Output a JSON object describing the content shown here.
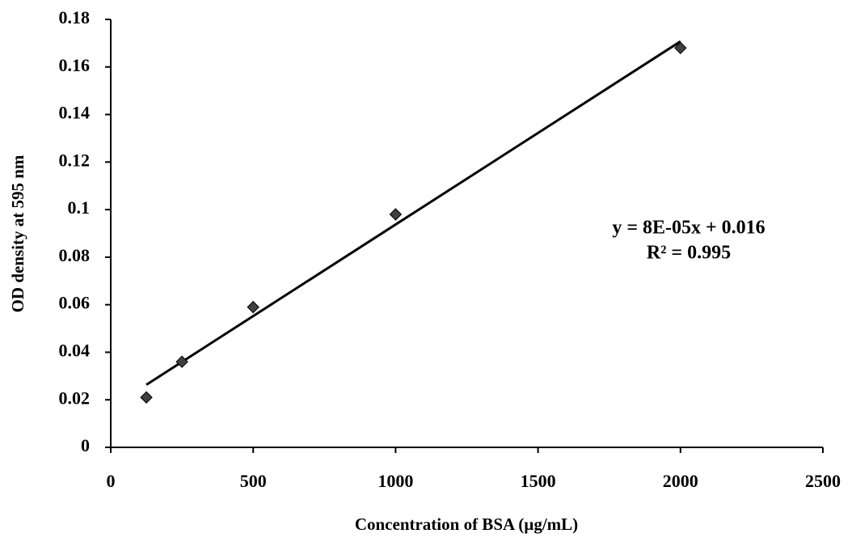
{
  "chart_data": {
    "type": "scatter",
    "x_label": "Concentration of BSA (µg/mL)",
    "y_label": "OD density  at 595 nm",
    "series": [
      {
        "color": "#404040",
        "x": [
          125,
          250,
          500,
          1000,
          2000
        ],
        "values": [
          0.021,
          0.036,
          0.059,
          0.098,
          0.168
        ]
      }
    ],
    "trendline": true,
    "annotations": [
      "y = 8E-05x + 0.016",
      "R² = 0.995"
    ],
    "xlim": [
      0,
      2500
    ],
    "xticks": [
      0,
      500,
      1000,
      1500,
      2000,
      2500
    ],
    "ylim": [
      0,
      0.18
    ],
    "yticks": [
      0,
      0.02,
      0.04,
      0.06,
      0.08,
      0.1,
      0.12,
      0.14,
      0.16,
      0.18
    ],
    "grid": false
  }
}
